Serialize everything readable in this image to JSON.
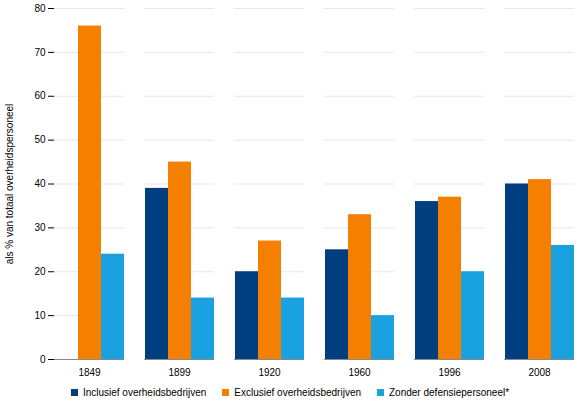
{
  "chart_data": {
    "type": "bar",
    "categories": [
      "1849",
      "1899",
      "1920",
      "1960",
      "1996",
      "2008"
    ],
    "series": [
      {
        "name": "Inclusief overheidsbedrijven",
        "color": "#003f7f",
        "values": [
          null,
          39,
          20,
          25,
          36,
          40
        ]
      },
      {
        "name": "Exclusief overheidsbedrijven",
        "color": "#f57f00",
        "values": [
          76,
          45,
          27,
          33,
          37,
          41
        ]
      },
      {
        "name": "Zonder defensiepersoneel*",
        "color": "#1aa1e0",
        "values": [
          24,
          14,
          14,
          10,
          20,
          26
        ]
      }
    ],
    "y_label": "als % van totaal overheidspersoneel",
    "ylim": [
      0,
      80
    ],
    "yticks": [
      0,
      10,
      20,
      30,
      40,
      50,
      60,
      70,
      80
    ],
    "grid": true,
    "legend": "bottom"
  }
}
